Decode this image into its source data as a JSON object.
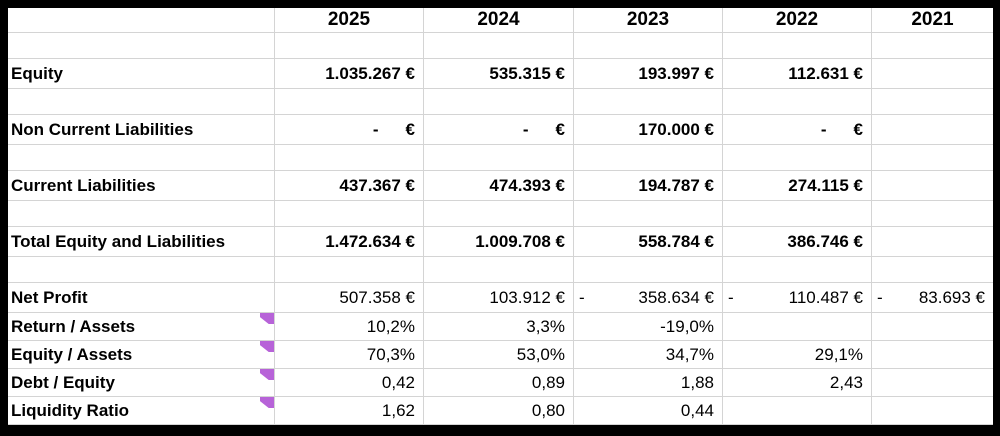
{
  "theme": {
    "grid_color": "#d4d4d4",
    "frame_color": "#000000",
    "text_color": "#000000",
    "comment_flag_color": "#b763d8"
  },
  "formats": {
    "accounting_dash": "-",
    "currency_symbol": "€",
    "accounting_minus": "-"
  },
  "table": {
    "columns": [
      {
        "header": ""
      },
      {
        "header": "2025"
      },
      {
        "header": "2024"
      },
      {
        "header": "2023"
      },
      {
        "header": "2022"
      },
      {
        "header": "2021"
      }
    ],
    "rows": [
      {
        "type": "gap"
      },
      {
        "type": "data",
        "label": "Equity",
        "valueStyle": "bold",
        "cells": [
          {
            "f": "cur",
            "v": "1.035.267 €"
          },
          {
            "f": "cur",
            "v": "535.315 €"
          },
          {
            "f": "cur",
            "v": "193.997 €"
          },
          {
            "f": "cur",
            "v": "112.631 €"
          },
          {
            "f": "empty"
          }
        ]
      },
      {
        "type": "gap"
      },
      {
        "type": "data",
        "label": "Non Current Liabilities",
        "valueStyle": "bold",
        "cells": [
          {
            "f": "dash"
          },
          {
            "f": "dash"
          },
          {
            "f": "cur",
            "v": "170.000 €"
          },
          {
            "f": "dash"
          },
          {
            "f": "empty"
          }
        ]
      },
      {
        "type": "gap"
      },
      {
        "type": "data",
        "label": "Current Liabilities",
        "valueStyle": "bold",
        "cells": [
          {
            "f": "cur",
            "v": "437.367 €"
          },
          {
            "f": "cur",
            "v": "474.393 €"
          },
          {
            "f": "cur",
            "v": "194.787 €"
          },
          {
            "f": "cur",
            "v": "274.115 €"
          },
          {
            "f": "empty"
          }
        ]
      },
      {
        "type": "gap"
      },
      {
        "type": "data",
        "label": "Total Equity and Liabilities",
        "valueStyle": "bold",
        "cells": [
          {
            "f": "cur",
            "v": "1.472.634 €"
          },
          {
            "f": "cur",
            "v": "1.009.708 €"
          },
          {
            "f": "cur",
            "v": "558.784 €"
          },
          {
            "f": "cur",
            "v": "386.746 €"
          },
          {
            "f": "empty"
          }
        ]
      },
      {
        "type": "gap"
      },
      {
        "type": "data",
        "label": "Net Profit",
        "valueStyle": "regular",
        "cells": [
          {
            "f": "cur",
            "v": "507.358 €"
          },
          {
            "f": "cur",
            "v": "103.912 €"
          },
          {
            "f": "neg",
            "v": "358.634 €"
          },
          {
            "f": "neg",
            "v": "110.487 €"
          },
          {
            "f": "neg",
            "v": "83.693 €"
          }
        ]
      },
      {
        "type": "ratio",
        "label": "Return / Assets",
        "comment": true,
        "cells": [
          {
            "f": "num",
            "v": "10,2%"
          },
          {
            "f": "num",
            "v": "3,3%"
          },
          {
            "f": "num",
            "v": "-19,0%"
          },
          {
            "f": "empty"
          },
          {
            "f": "empty"
          }
        ]
      },
      {
        "type": "ratio",
        "label": "Equity / Assets",
        "comment": true,
        "cells": [
          {
            "f": "num",
            "v": "70,3%"
          },
          {
            "f": "num",
            "v": "53,0%"
          },
          {
            "f": "num",
            "v": "34,7%"
          },
          {
            "f": "num",
            "v": "29,1%"
          },
          {
            "f": "empty"
          }
        ]
      },
      {
        "type": "ratio",
        "label": "Debt / Equity",
        "comment": true,
        "cells": [
          {
            "f": "num",
            "v": "0,42"
          },
          {
            "f": "num",
            "v": "0,89"
          },
          {
            "f": "num",
            "v": "1,88"
          },
          {
            "f": "num",
            "v": "2,43"
          },
          {
            "f": "empty"
          }
        ]
      },
      {
        "type": "ratio",
        "label": "Liquidity Ratio",
        "comment": true,
        "cells": [
          {
            "f": "num",
            "v": "1,62"
          },
          {
            "f": "num",
            "v": "0,80"
          },
          {
            "f": "num",
            "v": "0,44"
          },
          {
            "f": "empty"
          },
          {
            "f": "empty"
          }
        ]
      }
    ]
  }
}
